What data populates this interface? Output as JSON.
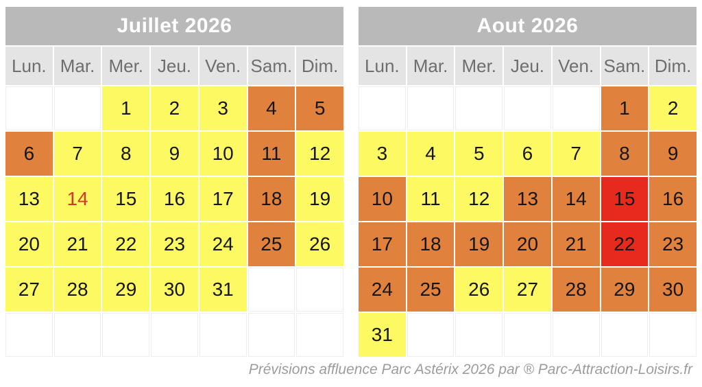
{
  "chart_data": {
    "type": "heatmap",
    "description": "Two monthly calendars with color-coded crowd levels per day",
    "level_colors": {
      "y": "yellow",
      "o": "orange",
      "r": "red"
    },
    "calendars": [
      {
        "title": "Juillet 2026",
        "day_headers": [
          "Lun.",
          "Mar.",
          "Mer.",
          "Jeu.",
          "Ven.",
          "Sam.",
          "Dim."
        ],
        "weeks": [
          [
            {
              "d": "",
              "c": ""
            },
            {
              "d": "",
              "c": ""
            },
            {
              "d": "1",
              "c": "y"
            },
            {
              "d": "2",
              "c": "y"
            },
            {
              "d": "3",
              "c": "y"
            },
            {
              "d": "4",
              "c": "o"
            },
            {
              "d": "5",
              "c": "o"
            }
          ],
          [
            {
              "d": "6",
              "c": "o"
            },
            {
              "d": "7",
              "c": "y"
            },
            {
              "d": "8",
              "c": "y"
            },
            {
              "d": "9",
              "c": "y"
            },
            {
              "d": "10",
              "c": "y"
            },
            {
              "d": "11",
              "c": "o"
            },
            {
              "d": "12",
              "c": "y"
            }
          ],
          [
            {
              "d": "13",
              "c": "y"
            },
            {
              "d": "14",
              "c": "y",
              "holiday": true
            },
            {
              "d": "15",
              "c": "y"
            },
            {
              "d": "16",
              "c": "y"
            },
            {
              "d": "17",
              "c": "y"
            },
            {
              "d": "18",
              "c": "o"
            },
            {
              "d": "19",
              "c": "y"
            }
          ],
          [
            {
              "d": "20",
              "c": "y"
            },
            {
              "d": "21",
              "c": "y"
            },
            {
              "d": "22",
              "c": "y"
            },
            {
              "d": "23",
              "c": "y"
            },
            {
              "d": "24",
              "c": "y"
            },
            {
              "d": "25",
              "c": "o"
            },
            {
              "d": "26",
              "c": "y"
            }
          ],
          [
            {
              "d": "27",
              "c": "y"
            },
            {
              "d": "28",
              "c": "y"
            },
            {
              "d": "29",
              "c": "y"
            },
            {
              "d": "30",
              "c": "y"
            },
            {
              "d": "31",
              "c": "y"
            },
            {
              "d": "",
              "c": ""
            },
            {
              "d": "",
              "c": ""
            }
          ],
          [
            {
              "d": "",
              "c": ""
            },
            {
              "d": "",
              "c": ""
            },
            {
              "d": "",
              "c": ""
            },
            {
              "d": "",
              "c": ""
            },
            {
              "d": "",
              "c": ""
            },
            {
              "d": "",
              "c": ""
            },
            {
              "d": "",
              "c": ""
            }
          ]
        ]
      },
      {
        "title": "Aout 2026",
        "day_headers": [
          "Lun.",
          "Mar.",
          "Mer.",
          "Jeu.",
          "Ven.",
          "Sam.",
          "Dim."
        ],
        "weeks": [
          [
            {
              "d": "",
              "c": ""
            },
            {
              "d": "",
              "c": ""
            },
            {
              "d": "",
              "c": ""
            },
            {
              "d": "",
              "c": ""
            },
            {
              "d": "",
              "c": ""
            },
            {
              "d": "1",
              "c": "o"
            },
            {
              "d": "2",
              "c": "y"
            }
          ],
          [
            {
              "d": "3",
              "c": "y"
            },
            {
              "d": "4",
              "c": "y"
            },
            {
              "d": "5",
              "c": "y"
            },
            {
              "d": "6",
              "c": "y"
            },
            {
              "d": "7",
              "c": "y"
            },
            {
              "d": "8",
              "c": "o"
            },
            {
              "d": "9",
              "c": "o"
            }
          ],
          [
            {
              "d": "10",
              "c": "o"
            },
            {
              "d": "11",
              "c": "y"
            },
            {
              "d": "12",
              "c": "y"
            },
            {
              "d": "13",
              "c": "o"
            },
            {
              "d": "14",
              "c": "o"
            },
            {
              "d": "15",
              "c": "r"
            },
            {
              "d": "16",
              "c": "o"
            }
          ],
          [
            {
              "d": "17",
              "c": "o"
            },
            {
              "d": "18",
              "c": "o"
            },
            {
              "d": "19",
              "c": "o"
            },
            {
              "d": "20",
              "c": "o"
            },
            {
              "d": "21",
              "c": "o"
            },
            {
              "d": "22",
              "c": "r"
            },
            {
              "d": "23",
              "c": "o"
            }
          ],
          [
            {
              "d": "24",
              "c": "o"
            },
            {
              "d": "25",
              "c": "o"
            },
            {
              "d": "26",
              "c": "y"
            },
            {
              "d": "27",
              "c": "y"
            },
            {
              "d": "28",
              "c": "o"
            },
            {
              "d": "29",
              "c": "o"
            },
            {
              "d": "30",
              "c": "o"
            }
          ],
          [
            {
              "d": "31",
              "c": "y"
            },
            {
              "d": "",
              "c": ""
            },
            {
              "d": "",
              "c": ""
            },
            {
              "d": "",
              "c": ""
            },
            {
              "d": "",
              "c": ""
            },
            {
              "d": "",
              "c": ""
            },
            {
              "d": "",
              "c": ""
            }
          ]
        ]
      }
    ]
  },
  "colors": {
    "yellow": "#FCF963",
    "orange": "#E0813D",
    "red": "#E8291D",
    "title-bg": "#B9B9B9",
    "header-bg": "#E4E4E4",
    "header-text": "#6E6E6E",
    "day-text": "#161616",
    "holiday-text": "#CF3A2B",
    "footer-text": "#9C9C9C"
  },
  "footer": {
    "credit": "Prévisions affluence Parc Astérix 2026 par ® Parc-Attraction-Loisirs.fr"
  }
}
